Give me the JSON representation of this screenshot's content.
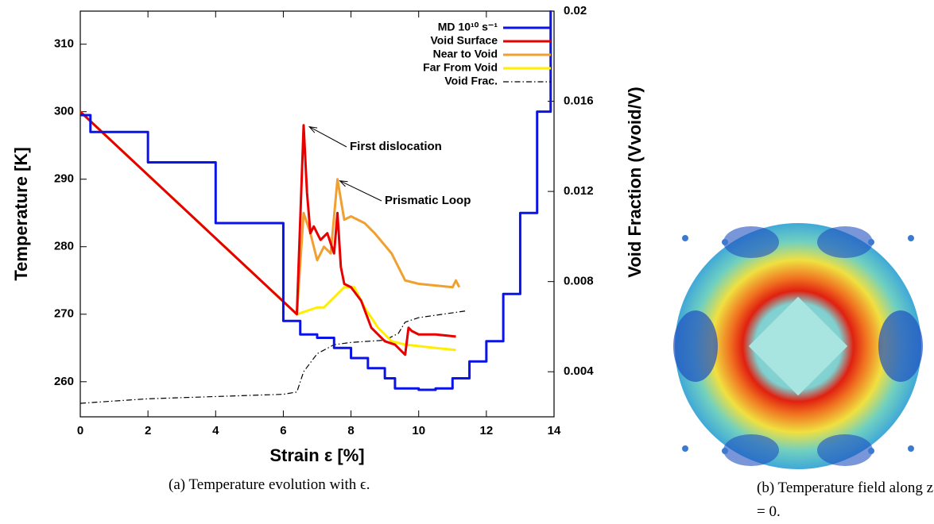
{
  "chart_data": {
    "type": "line",
    "xlabel": "Strain ε [%]",
    "ylabel": "Temperature [K]",
    "y2label": "Void Fraction (Vvoid/V)",
    "xlim": [
      0,
      14
    ],
    "ylim": [
      254.8,
      314.9
    ],
    "y2lim": [
      0.002,
      0.02
    ],
    "xticks": [
      0,
      2,
      4,
      6,
      8,
      10,
      12,
      14
    ],
    "yticks": [
      260,
      270,
      280,
      290,
      300,
      310
    ],
    "y2ticks": [
      0.004,
      0.008,
      0.012,
      0.016,
      0.02
    ],
    "legend": "upper right",
    "series": [
      {
        "name": "MD 10¹⁰ s⁻¹",
        "color": "#0a14e6",
        "step": true,
        "x": [
          0,
          0.3,
          2,
          4,
          6,
          6.5,
          7,
          7.5,
          8,
          8.5,
          9,
          9.3,
          10,
          10.5,
          11,
          11.5,
          12,
          12.5,
          13,
          13.5,
          13.9
        ],
        "values": [
          299.5,
          297,
          292.5,
          283.5,
          269,
          267,
          266.5,
          265,
          263.5,
          262,
          260.5,
          259,
          258.8,
          259,
          260.5,
          263,
          266,
          273,
          285,
          300,
          315
        ]
      },
      {
        "name": "Void Surface",
        "color": "#e60000",
        "x": [
          0,
          6.4,
          6.6,
          6.7,
          6.8,
          6.9,
          7.1,
          7.3,
          7.5,
          7.6,
          7.7,
          7.8,
          8,
          8.3,
          8.6,
          8.8,
          9,
          9.3,
          9.6,
          9.7,
          9.8,
          10,
          10.5,
          11.1
        ],
        "values": [
          300,
          270,
          298,
          288,
          282,
          283,
          281,
          282,
          279,
          285,
          277,
          274.5,
          274,
          272,
          268,
          267,
          266,
          265.5,
          264,
          268,
          267.5,
          267,
          267,
          266.7
        ]
      },
      {
        "name": "Near to Void",
        "color": "#f0a030",
        "x": [
          0,
          6.4,
          6.6,
          6.8,
          7,
          7.2,
          7.4,
          7.6,
          7.8,
          8,
          8.4,
          8.7,
          9.2,
          9.6,
          10,
          11,
          11.1,
          11.2
        ],
        "values": [
          300,
          270,
          285,
          282,
          278,
          280,
          279,
          290,
          284,
          284.5,
          283.5,
          282,
          279,
          275,
          274.5,
          274,
          275,
          274
        ]
      },
      {
        "name": "Far From Void",
        "color": "#ffee00",
        "x": [
          0,
          6.4,
          7,
          7.2,
          7.4,
          7.6,
          7.8,
          8.1,
          8.4,
          8.8,
          9.2,
          9.6,
          10.5,
          11.1
        ],
        "values": [
          300,
          270,
          271,
          271,
          272,
          273,
          274,
          274,
          271,
          268,
          266,
          265.5,
          265,
          264.7
        ]
      },
      {
        "name": "Void Frac.",
        "color": "#000000",
        "axis": "y2",
        "dash": "dashdot",
        "x": [
          0,
          2,
          6,
          6.4,
          6.6,
          7,
          7.5,
          8,
          9,
          9.4,
          9.6,
          10,
          11.4
        ],
        "values": [
          0.0026,
          0.0028,
          0.003,
          0.0031,
          0.004,
          0.0048,
          0.0052,
          0.0053,
          0.0054,
          0.0057,
          0.0062,
          0.0064,
          0.0067
        ]
      }
    ],
    "annotations": [
      {
        "text": "First dislocation",
        "x": 6.7,
        "y": 298
      },
      {
        "text": "Prismatic Loop",
        "x": 7.6,
        "y": 290
      }
    ]
  },
  "captions": [
    "(a) Temperature evolution with ϵ.",
    "(b) Temperature field along z = 0."
  ]
}
